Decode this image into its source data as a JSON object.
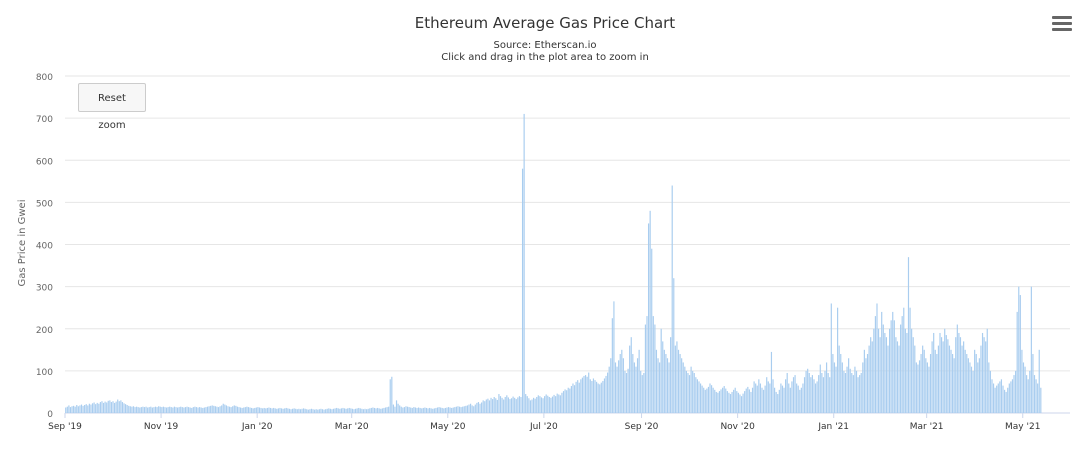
{
  "chart_data": {
    "type": "bar",
    "title": "Ethereum Average Gas Price Chart",
    "subtitle": [
      "Source: Etherscan.io",
      "Click and drag in the plot area to zoom in"
    ],
    "xlabel": "",
    "ylabel": "Gas Price in Gwei",
    "ylim": [
      0,
      800
    ],
    "yticks": [
      0,
      100,
      200,
      300,
      400,
      500,
      600,
      700,
      800
    ],
    "xlim": [
      "2019-09-01",
      "2021-05-31"
    ],
    "xticks": [
      "2019-09-01",
      "2019-11-01",
      "2020-01-01",
      "2020-03-01",
      "2020-05-01",
      "2020-07-01",
      "2020-09-01",
      "2020-11-01",
      "2021-01-01",
      "2021-03-01",
      "2021-05-01"
    ],
    "xtick_labels": [
      "Sep '19",
      "Nov '19",
      "Jan '20",
      "Mar '20",
      "May '20",
      "Jul '20",
      "Sep '20",
      "Nov '20",
      "Jan '21",
      "Mar '21",
      "May '21"
    ],
    "grid": "horizontal",
    "bar_color": "#a9cdef",
    "series": [
      {
        "x_start": "2019-09-01",
        "interval": "day",
        "values": [
          13,
          15,
          18,
          14,
          16,
          17,
          15,
          19,
          16,
          18,
          20,
          17,
          19,
          21,
          18,
          22,
          20,
          23,
          25,
          21,
          24,
          22,
          26,
          28,
          24,
          27,
          25,
          29,
          30,
          26,
          28,
          24,
          27,
          32,
          28,
          30,
          26,
          23,
          21,
          19,
          17,
          16,
          15,
          16,
          14,
          15,
          14,
          13,
          14,
          15,
          14,
          15,
          13,
          14,
          15,
          13,
          14,
          15,
          14,
          16,
          15,
          14,
          15,
          14,
          13,
          14,
          15,
          14,
          13,
          15,
          14,
          13,
          14,
          15,
          14,
          13,
          14,
          15,
          14,
          13,
          12,
          14,
          15,
          14,
          13,
          14,
          13,
          12,
          13,
          14,
          15,
          16,
          17,
          18,
          17,
          16,
          15,
          14,
          16,
          18,
          22,
          20,
          18,
          16,
          15,
          14,
          16,
          18,
          17,
          15,
          14,
          13,
          12,
          13,
          14,
          15,
          14,
          13,
          12,
          11,
          12,
          13,
          14,
          13,
          12,
          11,
          12,
          11,
          12,
          13,
          12,
          11,
          12,
          11,
          10,
          11,
          12,
          11,
          10,
          11,
          12,
          11,
          10,
          9,
          10,
          11,
          10,
          9,
          10,
          9,
          10,
          11,
          10,
          9,
          8,
          9,
          10,
          9,
          8,
          9,
          8,
          9,
          10,
          9,
          8,
          9,
          10,
          11,
          10,
          9,
          10,
          11,
          12,
          11,
          10,
          11,
          12,
          11,
          10,
          11,
          12,
          11,
          10,
          9,
          10,
          11,
          12,
          11,
          10,
          9,
          10,
          9,
          10,
          11,
          12,
          13,
          12,
          11,
          12,
          11,
          10,
          11,
          12,
          13,
          14,
          15,
          80,
          86,
          20,
          15,
          30,
          22,
          18,
          15,
          13,
          14,
          16,
          15,
          14,
          13,
          12,
          14,
          13,
          12,
          13,
          12,
          11,
          12,
          13,
          12,
          11,
          12,
          11,
          10,
          11,
          12,
          13,
          14,
          13,
          12,
          11,
          12,
          13,
          14,
          13,
          12,
          13,
          14,
          15,
          16,
          15,
          14,
          15,
          16,
          17,
          18,
          20,
          22,
          18,
          16,
          20,
          24,
          26,
          22,
          25,
          30,
          28,
          32,
          34,
          30,
          36,
          33,
          38,
          35,
          31,
          45,
          40,
          36,
          32,
          38,
          42,
          37,
          33,
          35,
          39,
          36,
          33,
          37,
          40,
          38,
          580,
          710,
          45,
          40,
          35,
          30,
          32,
          36,
          34,
          38,
          42,
          40,
          37,
          35,
          40,
          44,
          41,
          38,
          36,
          39,
          43,
          40,
          46,
          44,
          42,
          48,
          52,
          56,
          54,
          60,
          58,
          64,
          70,
          66,
          74,
          78,
          72,
          80,
          84,
          88,
          90,
          86,
          96,
          80,
          76,
          82,
          78,
          74,
          70,
          68,
          72,
          76,
          82,
          88,
          96,
          110,
          130,
          225,
          265,
          120,
          110,
          125,
          140,
          150,
          130,
          100,
          95,
          105,
          160,
          180,
          140,
          120,
          110,
          130,
          150,
          100,
          90,
          95,
          210,
          230,
          450,
          480,
          390,
          230,
          210,
          150,
          130,
          120,
          200,
          170,
          150,
          140,
          130,
          120,
          180,
          540,
          320,
          160,
          170,
          150,
          140,
          130,
          120,
          110,
          100,
          95,
          90,
          110,
          100,
          95,
          85,
          80,
          75,
          70,
          65,
          60,
          55,
          58,
          62,
          70,
          66,
          60,
          55,
          50,
          48,
          52,
          56,
          60,
          64,
          58,
          52,
          48,
          45,
          50,
          55,
          60,
          52,
          48,
          44,
          40,
          46,
          52,
          58,
          62,
          56,
          50,
          60,
          75,
          70,
          65,
          80,
          70,
          60,
          55,
          65,
          85,
          75,
          70,
          145,
          80,
          60,
          50,
          45,
          55,
          70,
          65,
          60,
          80,
          95,
          70,
          60,
          75,
          85,
          90,
          70,
          65,
          55,
          60,
          70,
          85,
          100,
          105,
          95,
          85,
          90,
          80,
          70,
          75,
          90,
          115,
          95,
          85,
          100,
          120,
          95,
          85,
          260,
          140,
          120,
          110,
          250,
          160,
          140,
          120,
          100,
          95,
          110,
          130,
          105,
          95,
          90,
          110,
          100,
          85,
          90,
          95,
          120,
          150,
          130,
          140,
          160,
          180,
          170,
          200,
          230,
          260,
          200,
          180,
          240,
          210,
          190,
          180,
          160,
          200,
          220,
          240,
          220,
          180,
          170,
          160,
          210,
          230,
          250,
          200,
          190,
          370,
          250,
          200,
          180,
          160,
          120,
          115,
          125,
          140,
          160,
          150,
          130,
          120,
          110,
          140,
          170,
          190,
          150,
          140,
          160,
          190,
          180,
          170,
          200,
          185,
          175,
          160,
          150,
          140,
          130,
          180,
          210,
          190,
          180,
          160,
          170,
          150,
          140,
          130,
          120,
          110,
          100,
          150,
          140,
          120,
          130,
          160,
          190,
          180,
          170,
          200,
          120,
          100,
          80,
          70,
          60,
          65,
          70,
          75,
          80,
          65,
          55,
          50,
          60,
          70,
          75,
          80,
          90,
          100,
          240,
          300,
          280,
          150,
          120,
          110,
          90,
          80,
          100,
          300,
          140,
          90,
          80,
          70,
          150,
          60
        ]
      }
    ]
  }
}
